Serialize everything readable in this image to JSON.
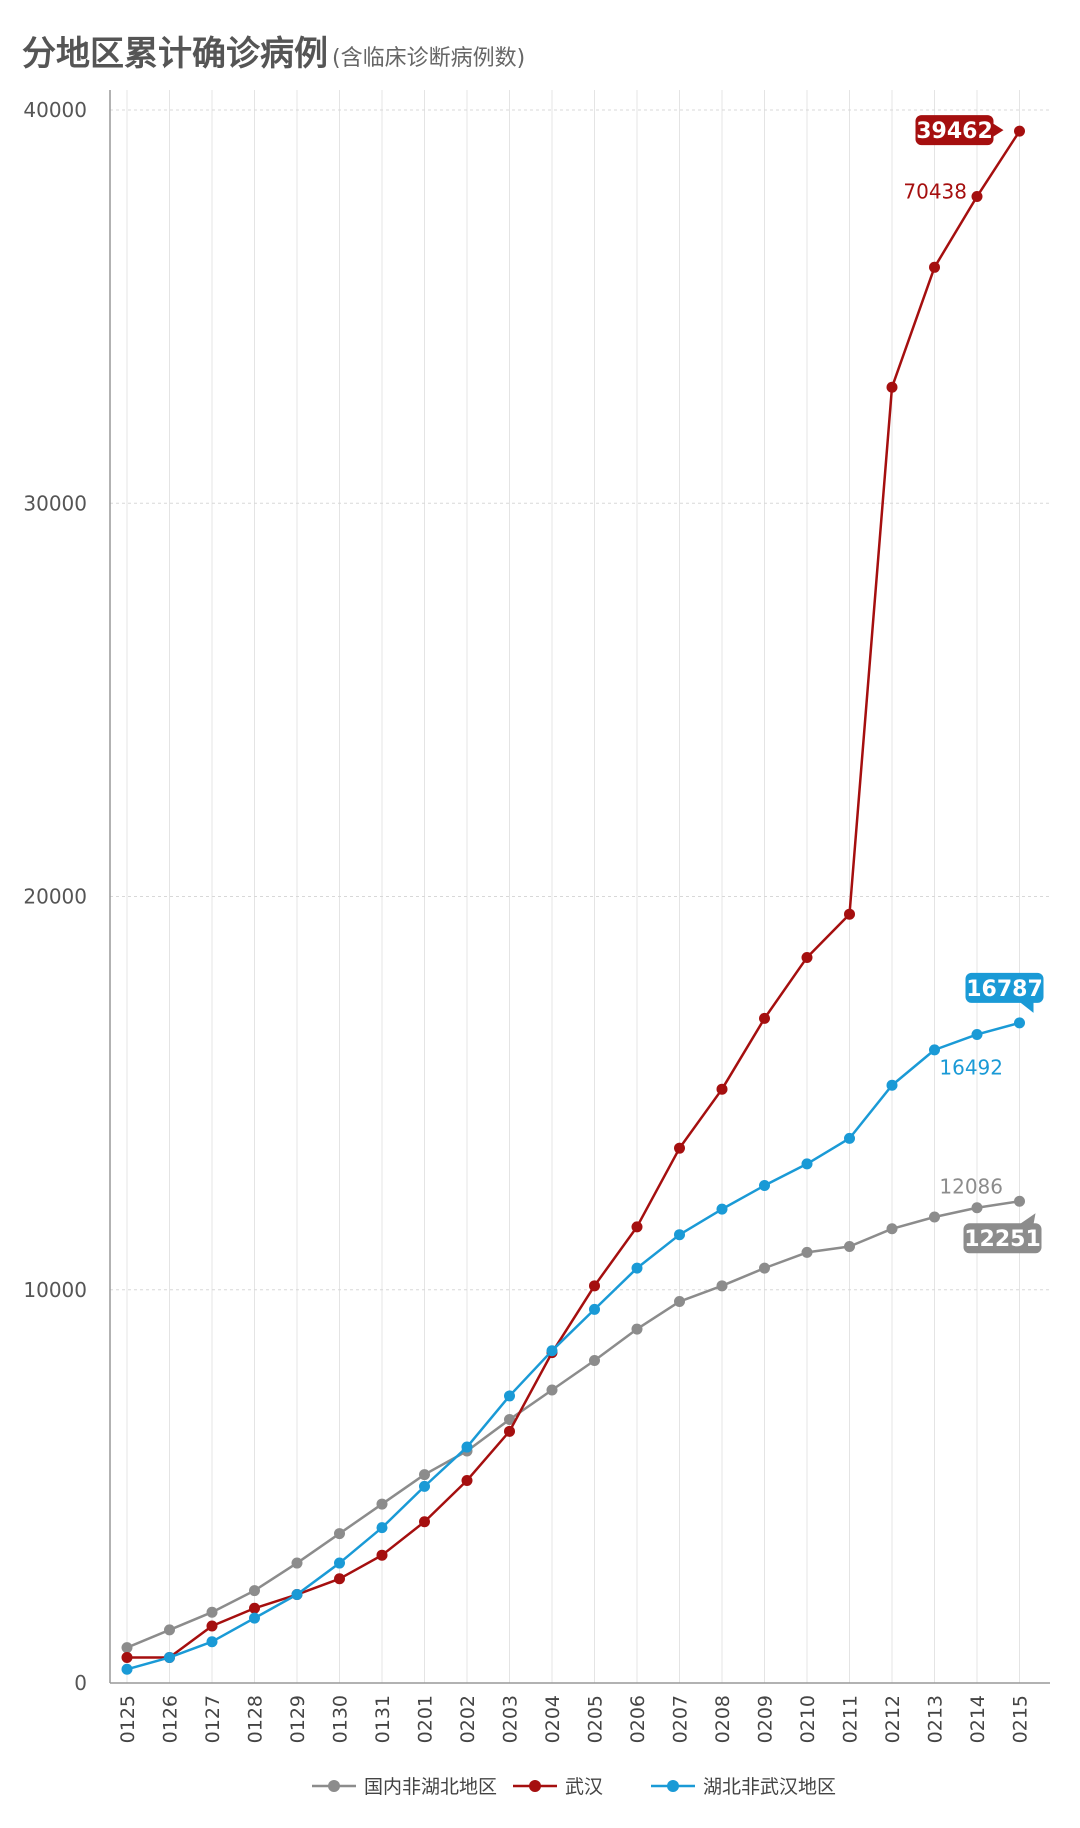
{
  "title": "分地区累计确诊病例",
  "subtitle": "(含临床诊断病例数)",
  "chart_data": {
    "type": "line",
    "categories": [
      "0125",
      "0126",
      "0127",
      "0128",
      "0129",
      "0130",
      "0131",
      "0201",
      "0202",
      "0203",
      "0204",
      "0205",
      "0206",
      "0207",
      "0208",
      "0209",
      "0210",
      "0211",
      "0212",
      "0213",
      "0214",
      "0215"
    ],
    "ylim": [
      0,
      40000
    ],
    "yticks": [
      "0",
      "10000",
      "20000",
      "30000",
      "40000"
    ],
    "grid": true,
    "legend_position": "bottom",
    "series": [
      {
        "name": "国内非湖北地区",
        "color": "#8c8c8c",
        "values": [
          900,
          1350,
          1800,
          2350,
          3050,
          3800,
          4550,
          5300,
          5900,
          6700,
          7450,
          8200,
          9000,
          9700,
          10100,
          10550,
          10950,
          11100,
          11550,
          11850,
          12086,
          12251
        ]
      },
      {
        "name": "武汉",
        "color": "#a50f0f",
        "values": [
          650,
          650,
          1450,
          1900,
          2250,
          2650,
          3250,
          4100,
          5150,
          6400,
          8400,
          10100,
          11600,
          13600,
          15100,
          16900,
          18450,
          19550,
          32950,
          36000,
          37800,
          39462
        ]
      },
      {
        "name": "湖北非武汉地区",
        "color": "#1a9ad6",
        "values": [
          350,
          650,
          1050,
          1650,
          2250,
          3050,
          3950,
          5000,
          6000,
          7300,
          8450,
          9500,
          10550,
          11400,
          12050,
          12650,
          13200,
          13850,
          15200,
          16100,
          16492,
          16787
        ]
      }
    ],
    "annotations": [
      {
        "series": "武汉",
        "text": "70438",
        "badge": "39462"
      },
      {
        "series": "湖北非武汉地区",
        "text": "16492",
        "badge": "16787"
      },
      {
        "series": "国内非湖北地区",
        "text": "12086",
        "badge": "12251"
      }
    ]
  }
}
